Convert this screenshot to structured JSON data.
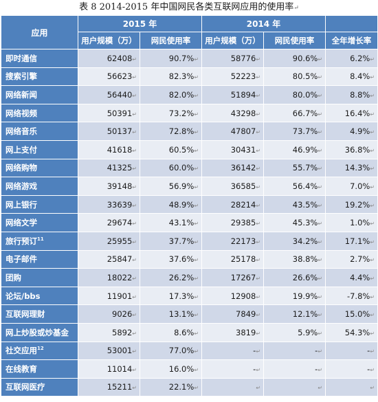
{
  "caption": {
    "text": "表 8   2014-2015 年中国网民各类互联网应用的使用率",
    "tail": "↵"
  },
  "header": {
    "col_app": "应用",
    "year_2015": "2015 年",
    "year_2014": "2014 年",
    "users_2015": "用户规模（万）",
    "rate_2015": "网民使用率",
    "users_2014": "用户规模（万）",
    "rate_2014": "网民使用率",
    "growth": "全年增长率"
  },
  "mark": "↵",
  "rows": [
    {
      "name": "即时通信",
      "sup": "",
      "u2015": "62408",
      "r2015": "90.7%",
      "u2014": "58776",
      "r2014": "90.6%",
      "growth": "6.2%"
    },
    {
      "name": "搜索引擎",
      "sup": "",
      "u2015": "56623",
      "r2015": "82.3%",
      "u2014": "52223",
      "r2014": "80.5%",
      "growth": "8.4%"
    },
    {
      "name": "网络新闻",
      "sup": "",
      "u2015": "56440",
      "r2015": "82.0%",
      "u2014": "51894",
      "r2014": "80.0%",
      "growth": "8.8%"
    },
    {
      "name": "网络视频",
      "sup": "",
      "u2015": "50391",
      "r2015": "73.2%",
      "u2014": "43298",
      "r2014": "66.7%",
      "growth": "16.4%"
    },
    {
      "name": "网络音乐",
      "sup": "",
      "u2015": "50137",
      "r2015": "72.8%",
      "u2014": "47807",
      "r2014": "73.7%",
      "growth": "4.9%"
    },
    {
      "name": "网上支付",
      "sup": "",
      "u2015": "41618",
      "r2015": "60.5%",
      "u2014": "30431",
      "r2014": "46.9%",
      "growth": "36.8%"
    },
    {
      "name": "网络购物",
      "sup": "",
      "u2015": "41325",
      "r2015": "60.0%",
      "u2014": "36142",
      "r2014": "55.7%",
      "growth": "14.3%"
    },
    {
      "name": "网络游戏",
      "sup": "",
      "u2015": "39148",
      "r2015": "56.9%",
      "u2014": "36585",
      "r2014": "56.4%",
      "growth": "7.0%"
    },
    {
      "name": "网上银行",
      "sup": "",
      "u2015": "33639",
      "r2015": "48.9%",
      "u2014": "28214",
      "r2014": "43.5%",
      "growth": "19.2%"
    },
    {
      "name": "网络文学",
      "sup": "",
      "u2015": "29674",
      "r2015": "43.1%",
      "u2014": "29385",
      "r2014": "45.3%",
      "growth": "1.0%"
    },
    {
      "name": "旅行预订",
      "sup": "11",
      "u2015": "25955",
      "r2015": "37.7%",
      "u2014": "22173",
      "r2014": "34.2%",
      "growth": "17.1%"
    },
    {
      "name": "电子邮件",
      "sup": "",
      "u2015": "25847",
      "r2015": "37.6%",
      "u2014": "25178",
      "r2014": "38.8%",
      "growth": "2.7%"
    },
    {
      "name": "团购",
      "sup": "",
      "u2015": "18022",
      "r2015": "26.2%",
      "u2014": "17267",
      "r2014": "26.6%",
      "growth": "4.4%"
    },
    {
      "name": "论坛/bbs",
      "sup": "",
      "u2015": "11901",
      "r2015": "17.3%",
      "u2014": "12908",
      "r2014": "19.9%",
      "growth": "-7.8%"
    },
    {
      "name": "互联网理财",
      "sup": "",
      "u2015": "9026",
      "r2015": "13.1%",
      "u2014": "7849",
      "r2014": "12.1%",
      "growth": "15.0%"
    },
    {
      "name": "网上炒股或炒基金",
      "sup": "",
      "u2015": "5892",
      "r2015": "8.6%",
      "u2014": "3819",
      "r2014": "5.9%",
      "growth": "54.3%"
    },
    {
      "name": "社交应用",
      "sup": "12",
      "u2015": "53001",
      "r2015": "77.0%",
      "u2014": "-",
      "r2014": "-",
      "growth": "-"
    },
    {
      "name": "在线教育",
      "sup": "",
      "u2015": "11014",
      "r2015": "16.0%",
      "u2014": "-",
      "r2014": "-",
      "growth": "-"
    },
    {
      "name": "互联网医疗",
      "sup": "",
      "u2015": "15211",
      "r2015": "22.1%",
      "u2014": "",
      "r2014": "",
      "growth": ""
    }
  ]
}
